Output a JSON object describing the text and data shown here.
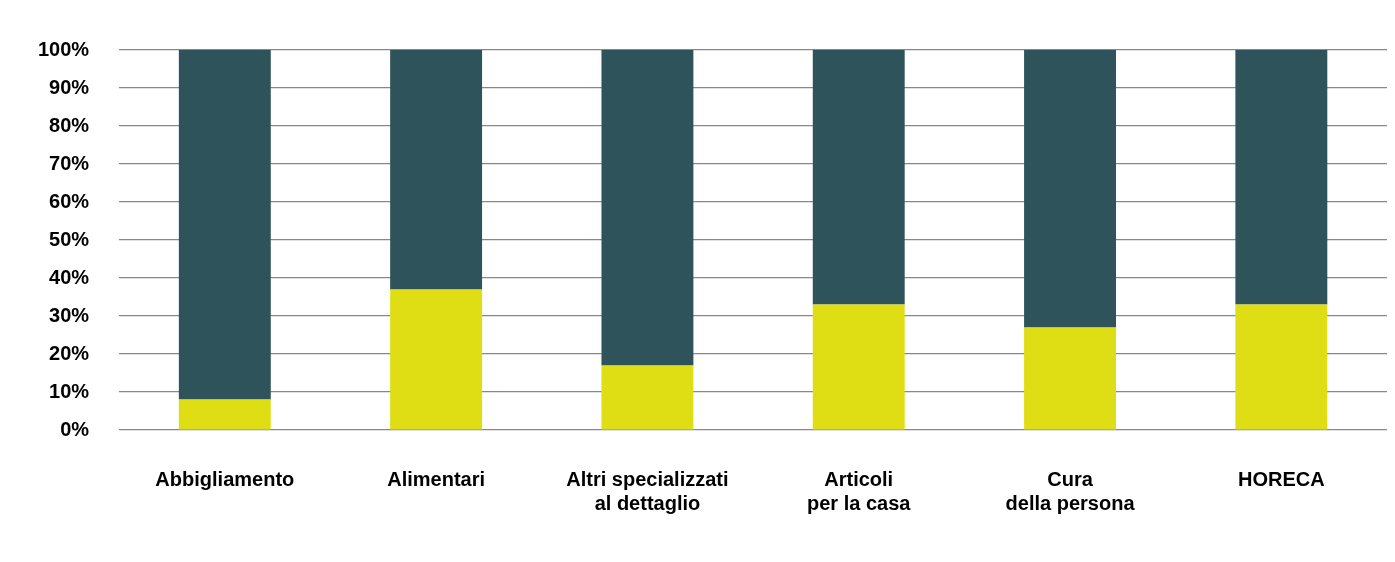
{
  "chart_data": {
    "type": "bar",
    "stacked": true,
    "categories": [
      "Abbigliamento",
      "Alimentari",
      "Altri specializzati\nal dettaglio",
      "Articoli\nper la casa",
      "Cura\ndella persona",
      "HORECA"
    ],
    "series": [
      {
        "color": "#dfdd14",
        "values": [
          8,
          37,
          17,
          33,
          27,
          33
        ]
      },
      {
        "color": "#2e535a",
        "values": [
          92,
          63,
          83,
          67,
          73,
          67
        ]
      }
    ],
    "ylim": [
      0,
      100
    ],
    "yticks": [
      {
        "value": 0,
        "label": "0%"
      },
      {
        "value": 10,
        "label": "10%"
      },
      {
        "value": 20,
        "label": "20%"
      },
      {
        "value": 30,
        "label": "30%"
      },
      {
        "value": 40,
        "label": "40%"
      },
      {
        "value": 50,
        "label": "50%"
      },
      {
        "value": 60,
        "label": "60%"
      },
      {
        "value": 70,
        "label": "70%"
      },
      {
        "value": 80,
        "label": "80%"
      },
      {
        "value": 90,
        "label": "90%"
      },
      {
        "value": 100,
        "label": "100%"
      }
    ],
    "grid": "y",
    "legend": false
  }
}
